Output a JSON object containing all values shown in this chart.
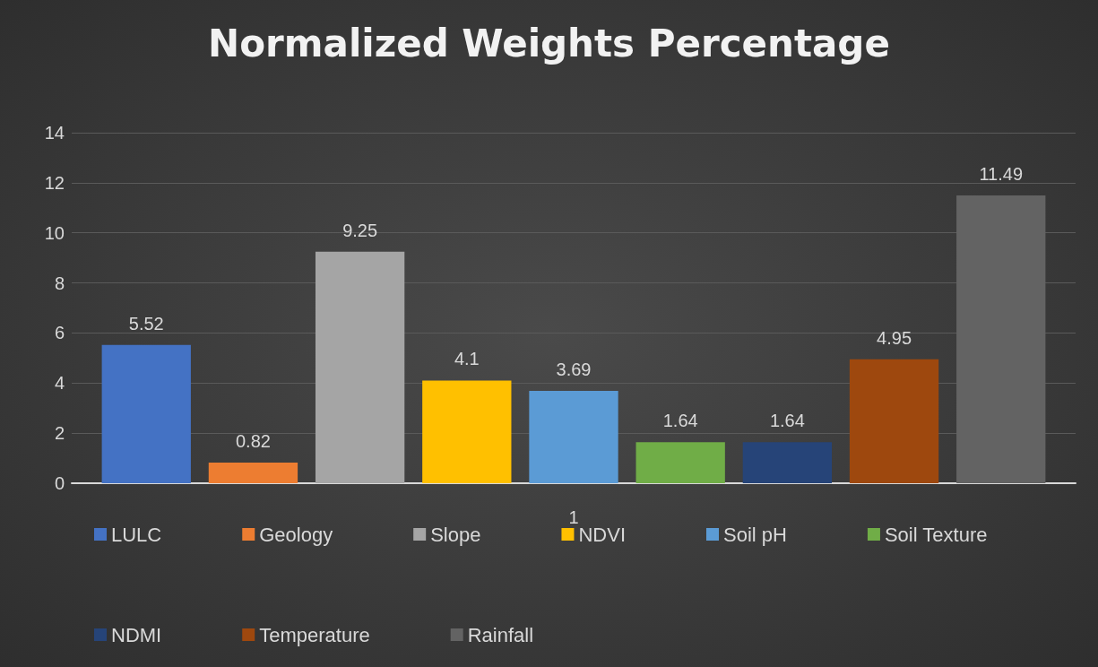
{
  "chart_data": {
    "type": "bar",
    "title": "Normalized Weights Percentage",
    "categories": [
      "1"
    ],
    "series": [
      {
        "name": "LULC",
        "color": "#4472c4",
        "values": [
          5.52
        ]
      },
      {
        "name": "Geology",
        "color": "#ed7d31",
        "values": [
          0.82
        ]
      },
      {
        "name": "Slope",
        "color": "#a5a5a5",
        "values": [
          9.25
        ]
      },
      {
        "name": "NDVI",
        "color": "#ffc000",
        "values": [
          4.1
        ]
      },
      {
        "name": "Soil pH",
        "color": "#5b9bd5",
        "values": [
          3.69
        ]
      },
      {
        "name": "Soil Texture",
        "color": "#70ad47",
        "values": [
          1.64
        ]
      },
      {
        "name": "NDMI",
        "color": "#264478",
        "values": [
          1.64
        ]
      },
      {
        "name": "Temperature",
        "color": "#9e480e",
        "values": [
          4.95
        ]
      },
      {
        "name": "Rainfall",
        "color": "#636363",
        "values": [
          11.49
        ]
      }
    ],
    "ylim": [
      0,
      14
    ],
    "yticks": [
      0,
      2,
      4,
      6,
      8,
      10,
      12,
      14
    ],
    "grid": "y",
    "legend": "bottom",
    "data_labels": true
  }
}
